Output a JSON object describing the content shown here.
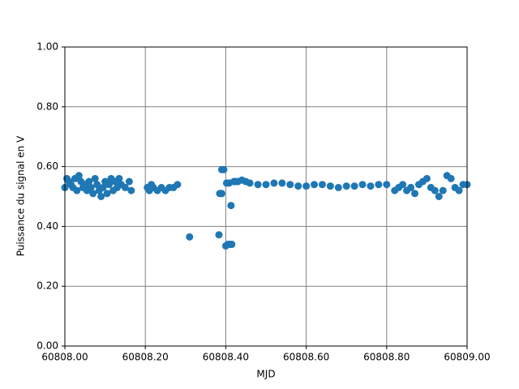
{
  "chart_data": {
    "type": "scatter",
    "xlabel": "MJD",
    "ylabel": "Puissance du signal en V",
    "color": "#1f77b4",
    "grid": true,
    "xlim": [
      60808.0,
      60809.0
    ],
    "xticks": [
      {
        "value": 60808.0,
        "label": "60808.00"
      },
      {
        "value": 60808.2,
        "label": "60808.20"
      },
      {
        "value": 60808.4,
        "label": "60808.40"
      },
      {
        "value": 60808.6,
        "label": "60808.60"
      },
      {
        "value": 60808.8,
        "label": "60808.80"
      },
      {
        "value": 60809.0,
        "label": "60809.00"
      }
    ],
    "ylim": [
      0,
      1
    ],
    "yticks": [
      {
        "value": 0,
        "label": "0.00"
      },
      {
        "value": 0.2,
        "label": "0.20"
      },
      {
        "value": 0.4,
        "label": "0.40"
      },
      {
        "value": 0.6,
        "label": "0.60"
      },
      {
        "value": 0.8,
        "label": "0.80"
      },
      {
        "value": 1,
        "label": "1.00"
      }
    ],
    "x": [
      60808.0,
      60808.005,
      60808.01,
      60808.015,
      60808.02,
      60808.025,
      60808.03,
      60808.035,
      60808.04,
      60808.045,
      60808.05,
      60808.055,
      60808.06,
      60808.065,
      60808.07,
      60808.075,
      60808.08,
      60808.085,
      60808.09,
      60808.095,
      60808.1,
      60808.105,
      60808.11,
      60808.115,
      60808.12,
      60808.125,
      60808.13,
      60808.135,
      60808.14,
      60808.15,
      60808.16,
      60808.165,
      60808.205,
      60808.21,
      60808.215,
      60808.22,
      60808.23,
      60808.24,
      60808.25,
      60808.26,
      60808.27,
      60808.28,
      60808.31,
      60808.383,
      60808.385,
      60808.39,
      60808.39,
      60808.395,
      60808.4,
      60808.405,
      60808.41,
      60808.413,
      60808.415,
      60808.402,
      60808.408,
      60808.42,
      60808.425,
      60808.43,
      60808.44,
      60808.45,
      60808.46,
      60808.48,
      60808.5,
      60808.52,
      60808.54,
      60808.56,
      60808.58,
      60808.6,
      60808.62,
      60808.64,
      60808.66,
      60808.68,
      60808.7,
      60808.72,
      60808.74,
      60808.76,
      60808.78,
      60808.8,
      60808.82,
      60808.83,
      60808.84,
      60808.85,
      60808.86,
      60808.87,
      60808.88,
      60808.89,
      60808.9,
      60808.91,
      60808.92,
      60808.93,
      60808.94,
      60808.95,
      60808.96,
      60808.97,
      60808.98,
      60808.99,
      60809.0
    ],
    "values": [
      0.53,
      0.56,
      0.55,
      0.54,
      0.53,
      0.56,
      0.52,
      0.57,
      0.55,
      0.53,
      0.54,
      0.52,
      0.55,
      0.53,
      0.51,
      0.56,
      0.54,
      0.52,
      0.5,
      0.53,
      0.55,
      0.51,
      0.54,
      0.56,
      0.52,
      0.55,
      0.53,
      0.56,
      0.54,
      0.53,
      0.55,
      0.52,
      0.53,
      0.52,
      0.54,
      0.53,
      0.52,
      0.53,
      0.52,
      0.53,
      0.53,
      0.54,
      0.365,
      0.372,
      0.51,
      0.51,
      0.59,
      0.59,
      0.335,
      0.34,
      0.34,
      0.47,
      0.34,
      0.545,
      0.545,
      0.55,
      0.55,
      0.55,
      0.555,
      0.55,
      0.545,
      0.54,
      0.54,
      0.545,
      0.545,
      0.54,
      0.535,
      0.535,
      0.54,
      0.54,
      0.535,
      0.53,
      0.535,
      0.535,
      0.54,
      0.535,
      0.54,
      0.54,
      0.52,
      0.53,
      0.54,
      0.52,
      0.53,
      0.51,
      0.54,
      0.55,
      0.56,
      0.53,
      0.52,
      0.5,
      0.52,
      0.57,
      0.56,
      0.53,
      0.52,
      0.54,
      0.54
    ]
  }
}
